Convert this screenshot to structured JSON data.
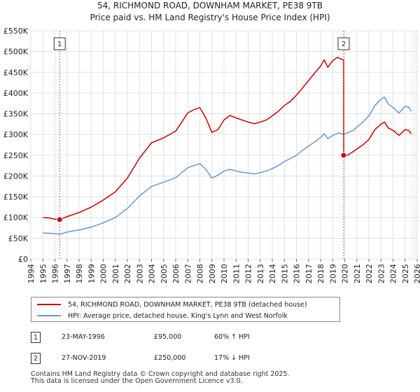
{
  "chart_data": {
    "type": "line",
    "title": "54, RICHMOND ROAD, DOWNHAM MARKET, PE38 9TB",
    "subtitle": "Price paid vs. HM Land Registry's House Price Index (HPI)",
    "xlim": [
      1994,
      2026
    ],
    "ylim": [
      0,
      550000
    ],
    "x_ticks": [
      "1994",
      "1995",
      "1996",
      "1997",
      "1998",
      "1999",
      "2000",
      "2001",
      "2002",
      "2003",
      "2004",
      "2005",
      "2006",
      "2007",
      "2008",
      "2009",
      "2010",
      "2011",
      "2012",
      "2013",
      "2014",
      "2015",
      "2016",
      "2017",
      "2018",
      "2019",
      "2020",
      "2021",
      "2022",
      "2023",
      "2024",
      "2025",
      "2026"
    ],
    "y_ticks": [
      {
        "value": 0,
        "label": "£0"
      },
      {
        "value": 50000,
        "label": "£50K"
      },
      {
        "value": 100000,
        "label": "£100K"
      },
      {
        "value": 150000,
        "label": "£150K"
      },
      {
        "value": 200000,
        "label": "£200K"
      },
      {
        "value": 250000,
        "label": "£250K"
      },
      {
        "value": 300000,
        "label": "£300K"
      },
      {
        "value": 350000,
        "label": "£350K"
      },
      {
        "value": 400000,
        "label": "£400K"
      },
      {
        "value": 450000,
        "label": "£450K"
      },
      {
        "value": 500000,
        "label": "£500K"
      },
      {
        "value": 550000,
        "label": "£550K"
      }
    ],
    "grid": true,
    "series": [
      {
        "name": "54, RICHMOND ROAD, DOWNHAM MARKET, PE38 9TB (detached house)",
        "color": "#cc0000",
        "points": [
          [
            1995.0,
            100000
          ],
          [
            1995.5,
            99000
          ],
          [
            1996.0,
            96000
          ],
          [
            1996.39,
            95000
          ],
          [
            1997.0,
            102000
          ],
          [
            1998.0,
            112000
          ],
          [
            1999.0,
            125000
          ],
          [
            2000.0,
            142000
          ],
          [
            2001.0,
            162000
          ],
          [
            2002.0,
            195000
          ],
          [
            2003.0,
            243000
          ],
          [
            2004.0,
            280000
          ],
          [
            2005.0,
            292000
          ],
          [
            2006.0,
            308000
          ],
          [
            2006.5,
            330000
          ],
          [
            2007.0,
            352000
          ],
          [
            2007.5,
            360000
          ],
          [
            2008.0,
            365000
          ],
          [
            2008.5,
            340000
          ],
          [
            2009.0,
            305000
          ],
          [
            2009.5,
            312000
          ],
          [
            2010.0,
            335000
          ],
          [
            2010.5,
            346000
          ],
          [
            2011.0,
            340000
          ],
          [
            2011.5,
            335000
          ],
          [
            2012.0,
            330000
          ],
          [
            2012.5,
            326000
          ],
          [
            2013.0,
            330000
          ],
          [
            2013.5,
            335000
          ],
          [
            2014.0,
            345000
          ],
          [
            2014.5,
            356000
          ],
          [
            2015.0,
            370000
          ],
          [
            2015.5,
            380000
          ],
          [
            2016.0,
            395000
          ],
          [
            2016.5,
            412000
          ],
          [
            2017.0,
            430000
          ],
          [
            2017.5,
            448000
          ],
          [
            2018.0,
            465000
          ],
          [
            2018.3,
            480000
          ],
          [
            2018.6,
            462000
          ],
          [
            2019.0,
            478000
          ],
          [
            2019.4,
            486000
          ],
          [
            2019.7,
            482000
          ],
          [
            2019.9,
            480000
          ],
          [
            2019.91,
            250000
          ],
          [
            2020.2,
            250000
          ],
          [
            2020.5,
            255000
          ],
          [
            2021.0,
            265000
          ],
          [
            2021.5,
            275000
          ],
          [
            2022.0,
            288000
          ],
          [
            2022.5,
            312000
          ],
          [
            2023.0,
            325000
          ],
          [
            2023.3,
            330000
          ],
          [
            2023.6,
            316000
          ],
          [
            2024.0,
            310000
          ],
          [
            2024.5,
            298000
          ],
          [
            2025.0,
            312000
          ],
          [
            2025.3,
            310000
          ],
          [
            2025.5,
            302000
          ]
        ]
      },
      {
        "name": "HPI: Average price, detached house, King's Lynn and West Norfolk",
        "color": "#6699cc",
        "points": [
          [
            1995.0,
            63000
          ],
          [
            1996.0,
            61000
          ],
          [
            1996.39,
            59500
          ],
          [
            1997.0,
            65000
          ],
          [
            1998.0,
            70000
          ],
          [
            1999.0,
            77000
          ],
          [
            2000.0,
            87000
          ],
          [
            2001.0,
            100000
          ],
          [
            2002.0,
            122000
          ],
          [
            2003.0,
            152000
          ],
          [
            2004.0,
            175000
          ],
          [
            2005.0,
            185000
          ],
          [
            2006.0,
            196000
          ],
          [
            2006.5,
            208000
          ],
          [
            2007.0,
            220000
          ],
          [
            2007.5,
            225000
          ],
          [
            2008.0,
            230000
          ],
          [
            2008.5,
            216000
          ],
          [
            2009.0,
            195000
          ],
          [
            2009.5,
            202000
          ],
          [
            2010.0,
            212000
          ],
          [
            2010.5,
            216000
          ],
          [
            2011.0,
            212000
          ],
          [
            2011.5,
            209000
          ],
          [
            2012.0,
            207000
          ],
          [
            2012.5,
            205000
          ],
          [
            2013.0,
            208000
          ],
          [
            2013.5,
            212000
          ],
          [
            2014.0,
            218000
          ],
          [
            2014.5,
            225000
          ],
          [
            2015.0,
            235000
          ],
          [
            2015.5,
            242000
          ],
          [
            2016.0,
            250000
          ],
          [
            2016.5,
            262000
          ],
          [
            2017.0,
            272000
          ],
          [
            2017.5,
            282000
          ],
          [
            2018.0,
            293000
          ],
          [
            2018.3,
            302000
          ],
          [
            2018.6,
            290000
          ],
          [
            2019.0,
            298000
          ],
          [
            2019.5,
            304000
          ],
          [
            2019.91,
            300000
          ],
          [
            2020.3,
            305000
          ],
          [
            2020.7,
            310000
          ],
          [
            2021.0,
            318000
          ],
          [
            2021.5,
            330000
          ],
          [
            2022.0,
            345000
          ],
          [
            2022.5,
            370000
          ],
          [
            2023.0,
            385000
          ],
          [
            2023.3,
            390000
          ],
          [
            2023.6,
            374000
          ],
          [
            2024.0,
            365000
          ],
          [
            2024.5,
            352000
          ],
          [
            2025.0,
            368000
          ],
          [
            2025.3,
            366000
          ],
          [
            2025.5,
            356000
          ]
        ]
      }
    ],
    "sales": [
      {
        "id": "1",
        "date": "23-MAY-1996",
        "x": 1996.39,
        "price": 95000,
        "price_label": "£95,000",
        "hpi_label": "60% ↑ HPI"
      },
      {
        "id": "2",
        "date": "27-NOV-2019",
        "x": 2019.91,
        "price": 250000,
        "price_label": "£250,000",
        "hpi_label": "17% ↓ HPI"
      }
    ],
    "hatched_after": 2025.5
  },
  "footer": {
    "line1": "Contains HM Land Registry data © Crown copyright and database right 2025.",
    "line2": "This data is licensed under the Open Government Licence v3.0."
  }
}
